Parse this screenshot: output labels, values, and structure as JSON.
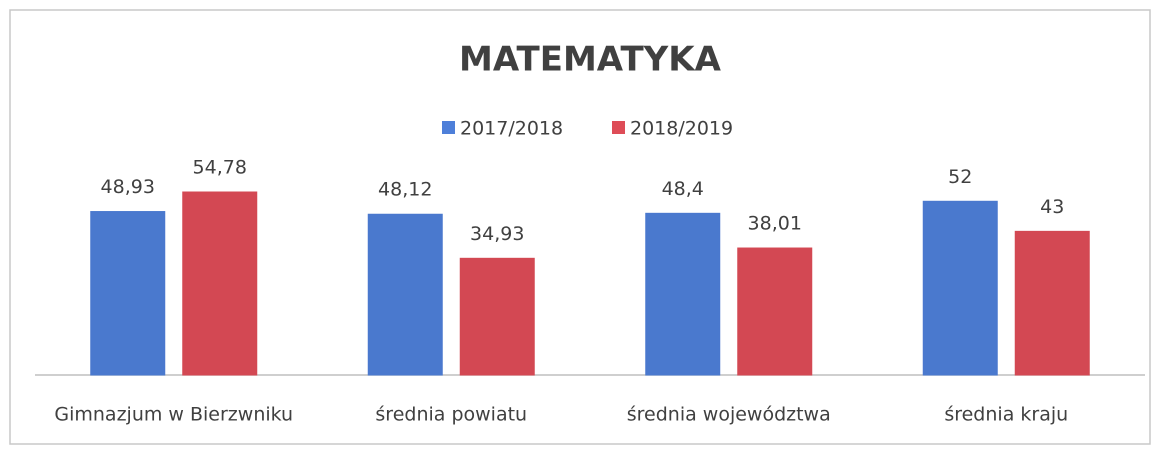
{
  "chart_data": {
    "type": "bar",
    "title": "MATEMATYKA",
    "categories": [
      "Gimnazjum w Bierzwniku",
      "średnia powiatu",
      "średnia województwa",
      "średnia kraju"
    ],
    "series": [
      {
        "name": "2017/2018",
        "color": "#4e7fd9",
        "values": [
          48.93,
          48.12,
          48.4,
          52
        ],
        "value_labels": [
          "48,93",
          "48,12",
          "48,4",
          "52"
        ]
      },
      {
        "name": "2018/2019",
        "color": "#de4c57",
        "values": [
          54.78,
          34.93,
          38.01,
          43
        ],
        "value_labels": [
          "54,78",
          "34,93",
          "38,01",
          "43"
        ]
      }
    ],
    "legend": "top"
  }
}
